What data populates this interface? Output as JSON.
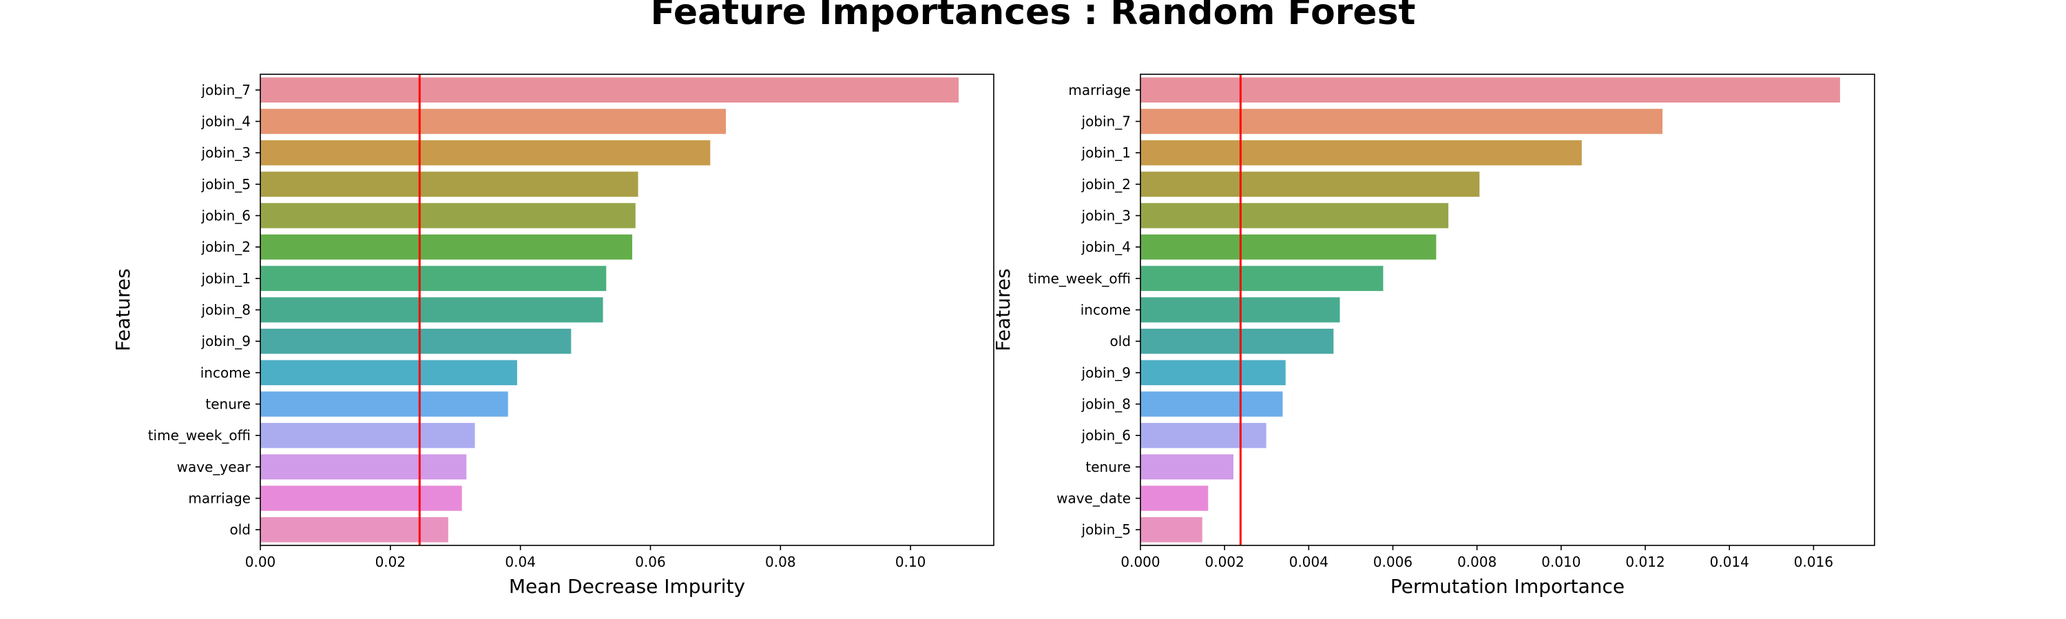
{
  "figure": {
    "title": "Feature Importances : Random Forest"
  },
  "chart_data": [
    {
      "type": "bar",
      "orientation": "horizontal",
      "xlabel": "Mean Decrease Impurity",
      "ylabel": "Features",
      "xlim": [
        0,
        0.1128
      ],
      "xticks": [
        0.0,
        0.02,
        0.04,
        0.06,
        0.08,
        0.1
      ],
      "xtick_labels": [
        "0.00",
        "0.02",
        "0.04",
        "0.06",
        "0.08",
        "0.10"
      ],
      "categories": [
        "jobin_7",
        "jobin_4",
        "jobin_3",
        "jobin_5",
        "jobin_6",
        "jobin_2",
        "jobin_1",
        "jobin_8",
        "jobin_9",
        "income",
        "tenure",
        "time_week_offi",
        "wave_year",
        "marriage",
        "old"
      ],
      "values": [
        0.1074,
        0.0716,
        0.0692,
        0.0581,
        0.0577,
        0.0572,
        0.0532,
        0.0527,
        0.0478,
        0.0395,
        0.0381,
        0.033,
        0.0317,
        0.031,
        0.0289
      ],
      "threshold_line": {
        "value": 0.0245,
        "color": "#ff0000"
      },
      "grid": false
    },
    {
      "type": "bar",
      "orientation": "horizontal",
      "xlabel": "Permutation Importance",
      "ylabel": "Features",
      "xlim": [
        0,
        0.01745
      ],
      "xticks": [
        0.0,
        0.002,
        0.004,
        0.006,
        0.008,
        0.01,
        0.012,
        0.014,
        0.016
      ],
      "xtick_labels": [
        "0.000",
        "0.002",
        "0.004",
        "0.006",
        "0.008",
        "0.010",
        "0.012",
        "0.014",
        "0.016"
      ],
      "categories": [
        "marriage",
        "jobin_7",
        "jobin_1",
        "jobin_2",
        "jobin_3",
        "jobin_4",
        "time_week_offi",
        "income",
        "old",
        "jobin_9",
        "jobin_8",
        "jobin_6",
        "tenure",
        "wave_date",
        "jobin_5"
      ],
      "values": [
        0.01663,
        0.01241,
        0.01049,
        0.00806,
        0.00732,
        0.00703,
        0.00577,
        0.00474,
        0.00459,
        0.00345,
        0.00338,
        0.00299,
        0.00221,
        0.00161,
        0.00147
      ],
      "threshold_line": {
        "value": 0.00238,
        "color": "#ff0000"
      },
      "grid": false
    }
  ],
  "bar_colors": [
    "#e8919c",
    "#e59571",
    "#c79b4b",
    "#aa9f46",
    "#97a548",
    "#63ae4a",
    "#4baf7c",
    "#48ab90",
    "#4aa9a4",
    "#4dafc5",
    "#6aadea",
    "#ababf0",
    "#d09be8",
    "#e88ada",
    "#e994c0"
  ]
}
